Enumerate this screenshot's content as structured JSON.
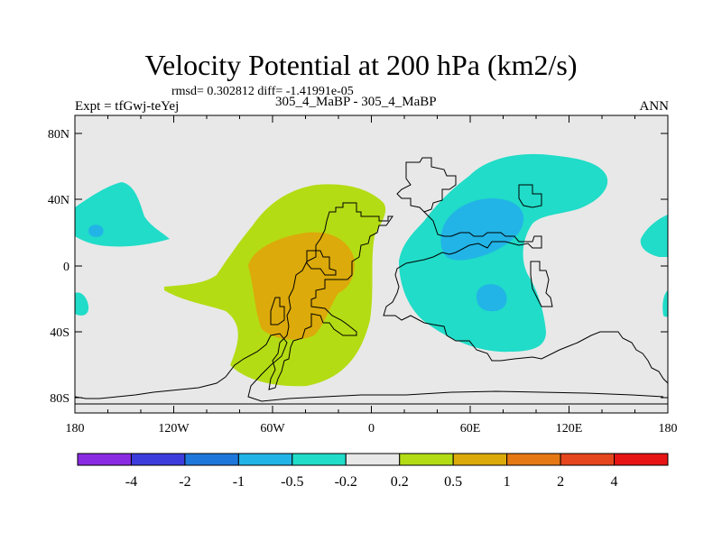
{
  "title": "Velocity Potential at 200 hPa (km2/s)",
  "stats": "rmsd= 0.302812 diff= -1.41991e-05",
  "experiment": "Expt = tfGwj-teYej",
  "case_label": "305_4_MaBP - 305_4_MaBP",
  "season": "ANN",
  "y_ticks": [
    "80N",
    "40N",
    "0",
    "40S",
    "80S"
  ],
  "x_ticks": [
    "180",
    "120W",
    "60W",
    "0",
    "60E",
    "120E",
    "180"
  ],
  "colorbar": {
    "colors": [
      "#8a2be2",
      "#3c3cdc",
      "#1e78dc",
      "#22b4e6",
      "#20dcc8",
      "#e8e8e8",
      "#b4dc14",
      "#dcaa0a",
      "#e67814",
      "#e6461e",
      "#e61414"
    ],
    "labels": [
      "-4",
      "-2",
      "-1",
      "-0.5",
      "-0.2",
      "0.2",
      "0.5",
      "1",
      "2",
      "4"
    ]
  },
  "map_colors": {
    "background": "#e8e8e8",
    "positive_low": "#b4dc14",
    "positive_mid": "#dcaa0a",
    "negative_low": "#20dcc8",
    "negative_mid": "#22b4e6"
  }
}
